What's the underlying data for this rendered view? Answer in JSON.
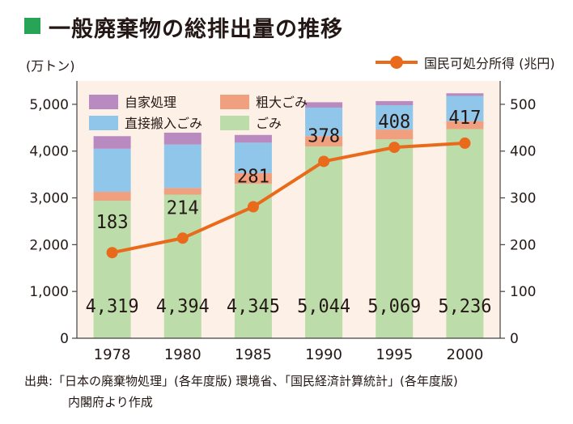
{
  "title": "一般廃棄物の総排出量の推移",
  "colors": {
    "title_square": "#27a455",
    "plot_background": "#fdf1e7",
    "self_disposal": "#b98ac0",
    "coarse": "#f0a07e",
    "direct": "#8fc6e9",
    "garbage": "#bcdcaa",
    "income_line": "#ea6a1c",
    "text": "#231815",
    "axis": "#444444"
  },
  "left_unit": "(万トン)",
  "right_unit": "国民可処分所得 (兆円)",
  "source": {
    "line1": "出典:「日本の廃棄物処理」(各年度版) 環境省、「国民経済計算統計」(各年度版)",
    "line2": "内閣府より作成"
  },
  "chart_data": {
    "type": "bar",
    "stacked": true,
    "categories": [
      "1978",
      "1980",
      "1985",
      "1990",
      "1995",
      "2000"
    ],
    "series": [
      {
        "name": "ごみ",
        "color_key": "garbage",
        "values": [
          2940,
          3070,
          3300,
          4100,
          4250,
          4470
        ]
      },
      {
        "name": "粗大ごみ",
        "color_key": "coarse",
        "values": [
          190,
          140,
          230,
          220,
          210,
          170
        ]
      },
      {
        "name": "直接搬入ごみ",
        "color_key": "direct",
        "values": [
          920,
          930,
          650,
          610,
          520,
          540
        ]
      },
      {
        "name": "自家処理",
        "color_key": "self_disposal",
        "values": [
          269,
          254,
          165,
          114,
          89,
          56
        ]
      }
    ],
    "totals": [
      4319,
      4394,
      4345,
      5044,
      5069,
      5236
    ],
    "total_labels": [
      "4,319",
      "4,394",
      "4,345",
      "5,044",
      "5,069",
      "5,236"
    ],
    "legend": [
      {
        "name": "自家処理",
        "color_key": "self_disposal"
      },
      {
        "name": "粗大ごみ",
        "color_key": "coarse"
      },
      {
        "name": "直接搬入ごみ",
        "color_key": "direct"
      },
      {
        "name": "ごみ",
        "color_key": "garbage"
      }
    ],
    "y_left": {
      "ylim": [
        0,
        5500
      ],
      "ticks": [
        0,
        1000,
        2000,
        3000,
        4000,
        5000
      ],
      "tick_labels": [
        "0",
        "1,000",
        "2,000",
        "3,000",
        "4,000",
        "5,000"
      ]
    },
    "line": {
      "name": "国民可処分所得",
      "values": [
        183,
        214,
        281,
        378,
        408,
        417
      ],
      "labels": [
        "183",
        "214",
        "281",
        "378",
        "408",
        "417"
      ]
    },
    "y_right": {
      "ylim": [
        0,
        550
      ],
      "ticks": [
        0,
        100,
        200,
        300,
        400,
        500
      ],
      "tick_labels": [
        "0",
        "100",
        "200",
        "300",
        "400",
        "500"
      ]
    },
    "grid": false,
    "legend_placement": "top-left"
  }
}
